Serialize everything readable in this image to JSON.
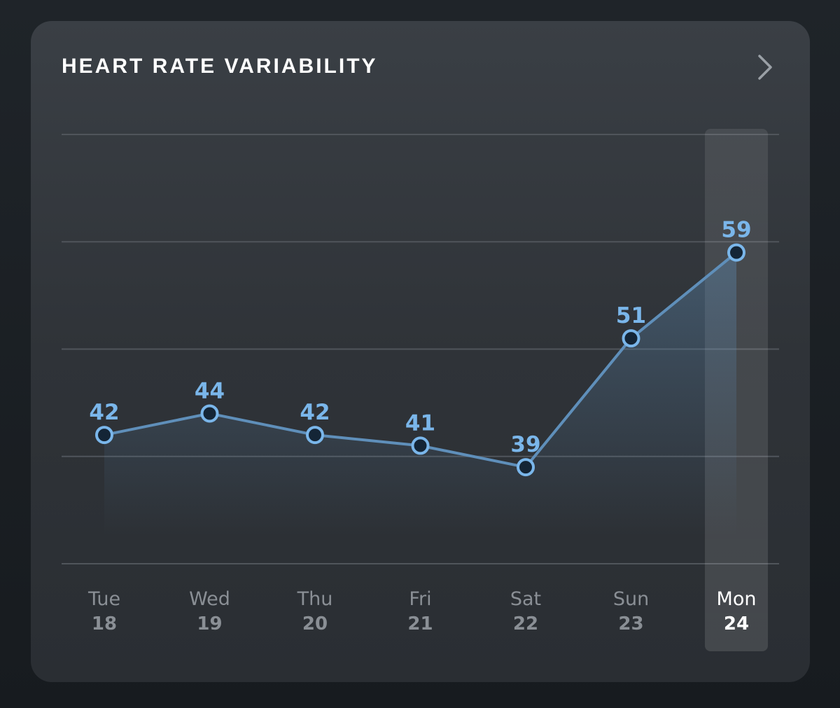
{
  "card": {
    "title": "HEART RATE VARIABILITY"
  },
  "icons": {
    "chevron": "chevron-right-icon"
  },
  "colors": {
    "accent": "#7ab6ea",
    "line": "#5f8fba",
    "point_fill": "#142536",
    "text_muted": "#8a8f95",
    "text_active": "#ffffff"
  },
  "chart_data": {
    "type": "line",
    "title": "HEART RATE VARIABILITY",
    "categories": [
      "Tue",
      "Wed",
      "Thu",
      "Fri",
      "Sat",
      "Sun",
      "Mon"
    ],
    "dates": [
      "18",
      "19",
      "20",
      "21",
      "22",
      "23",
      "24"
    ],
    "values": [
      42,
      44,
      42,
      41,
      39,
      51,
      59
    ],
    "highlighted_index": 6,
    "ylim": [
      30,
      70
    ],
    "gridlines": [
      30,
      40,
      50,
      60,
      70
    ],
    "grid": true,
    "show_data_labels": true
  }
}
